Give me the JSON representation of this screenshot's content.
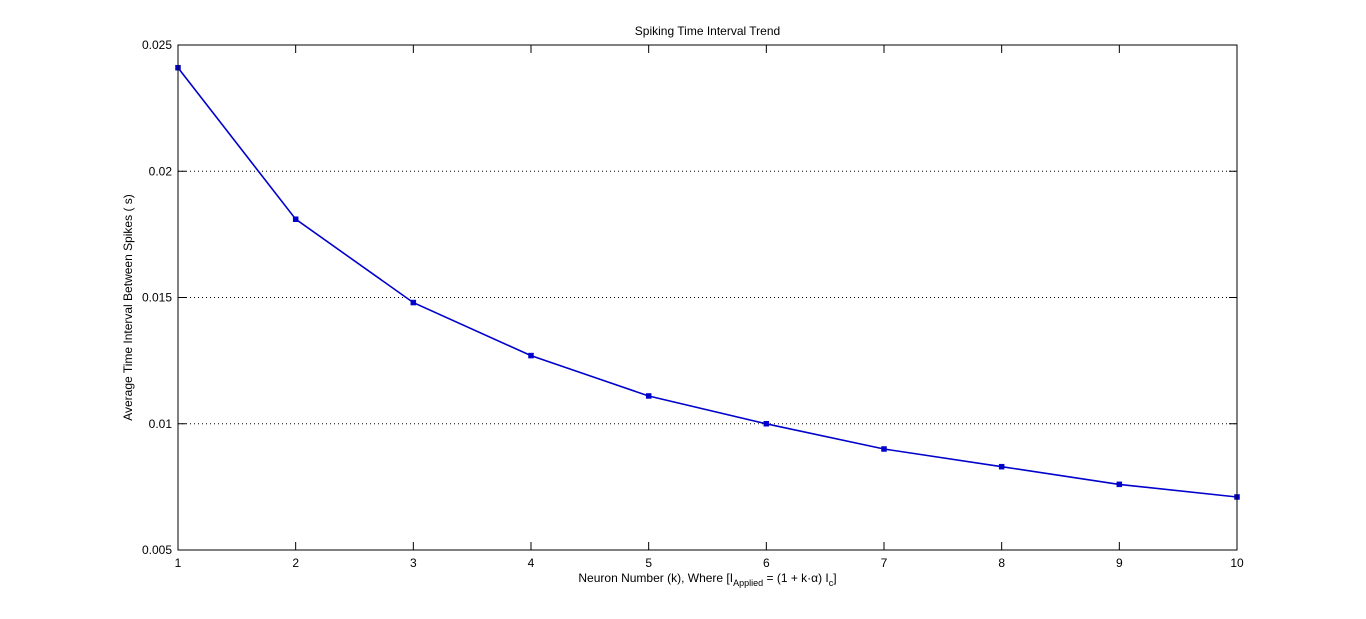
{
  "chart_data": {
    "type": "line",
    "title": "Spiking Time Interval Trend",
    "xlabel": {
      "prefix": "Neuron Number (k), Where [I",
      "sub1": "Applied",
      "middle": " = (1 + k·α) I",
      "sub2": "c",
      "suffix": "]"
    },
    "ylabel": "Average Time Interval Between Spikes (  s)",
    "xlim": [
      1,
      10
    ],
    "ylim": [
      0.005,
      0.025
    ],
    "xticks": [
      "1",
      "2",
      "3",
      "4",
      "5",
      "6",
      "7",
      "8",
      "9",
      "10"
    ],
    "yticks": [
      "0.005",
      "0.01",
      "0.015",
      "0.02",
      "0.025"
    ],
    "grid": "y-dotted",
    "line_color": "#0000cc",
    "x": [
      1,
      2,
      3,
      4,
      5,
      6,
      7,
      8,
      9,
      10
    ],
    "y": [
      0.0241,
      0.0181,
      0.0148,
      0.0127,
      0.0111,
      0.01,
      0.009,
      0.0083,
      0.0076,
      0.0071
    ]
  }
}
